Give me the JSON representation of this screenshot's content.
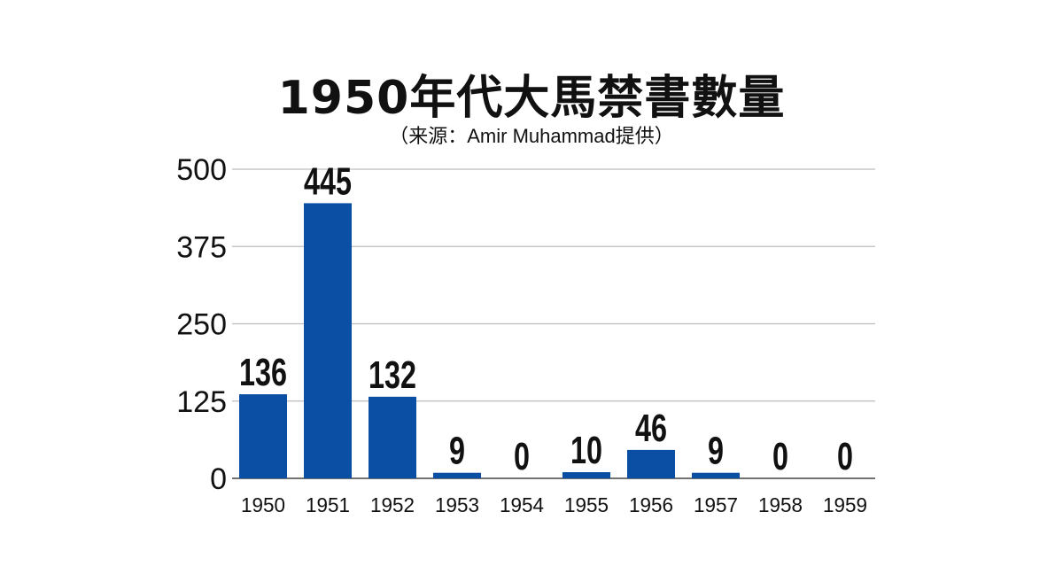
{
  "chart_data": {
    "type": "bar",
    "title": "1950年代大馬禁書數量",
    "subtitle": "（来源：Amir Muhammad提供）",
    "categories": [
      "1950",
      "1951",
      "1952",
      "1953",
      "1954",
      "1955",
      "1956",
      "1957",
      "1958",
      "1959"
    ],
    "values": [
      136,
      445,
      132,
      9,
      0,
      10,
      46,
      9,
      0,
      0
    ],
    "ylim": [
      0,
      500
    ],
    "yticks": [
      0,
      125,
      250,
      375,
      500
    ],
    "grid": true,
    "bar_color": "#0a4fa3",
    "grid_color": "#bdbdbd",
    "data_labels": true
  }
}
